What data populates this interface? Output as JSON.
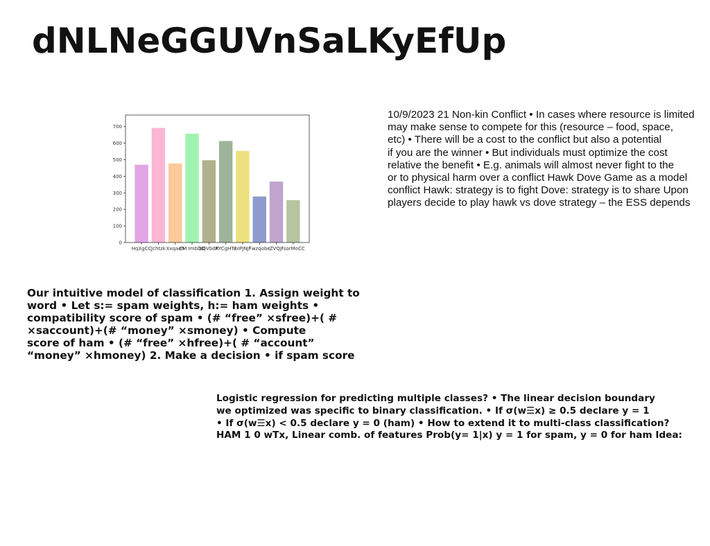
{
  "title": "dNLNeGGUVnSaLKyEfUp",
  "chart_data": {
    "type": "bar",
    "categories": [
      "HqXgCC",
      "Jchtzk",
      "Xxqaeh",
      "CM ImbDD",
      "bQVbdX",
      "RYCgHTe",
      "bIPJNJf",
      "Fwzqobe",
      "ZVQJf",
      "rsorMoCC"
    ],
    "values": [
      470,
      692,
      477,
      657,
      497,
      613,
      553,
      278,
      368,
      256
    ],
    "colors": [
      "#e2a6e6",
      "#fab6d3",
      "#fdca99",
      "#a0f3b1",
      "#b1b18b",
      "#9cb59a",
      "#ede180",
      "#8e9bcc",
      "#c0a4cd",
      "#b7c4a1"
    ],
    "yticks": [
      0,
      100,
      200,
      300,
      400,
      500,
      600,
      700
    ],
    "ylim": [
      0,
      770
    ],
    "title": "",
    "xlabel": "",
    "ylabel": ""
  },
  "para1": [
    "10/9/2023 21 Non-kin Conflict • In cases where resource is limited",
    "may make sense to compete for this (resource – food, space,",
    "etc) • There will be a cost to the conflict but also a potential",
    "if you are the winner • But individuals must optimize the cost",
    "relative the benefit • E.g. animals will almost never fight to the",
    "or to physical harm over a conflict Hawk Dove Game as a model",
    "conflict Hawk: strategy is to fight Dove: strategy is to share Upon",
    "players decide to play hawk vs dove strategy – the ESS depends"
  ],
  "para2": [
    "Our intuitive model of classification 1. Assign weight to",
    "word • Let s:= spam weights, h:= ham weights •",
    "compatibility score of spam • (# “free” ×sfree)+( #",
    "×saccount)+(# “money” ×smoney) • Compute",
    "score of ham • (# “free” ×hfree)+( # “account”",
    "“money” ×hmoney) 2. Make a decision • if spam score"
  ],
  "para3": [
    "Logistic regression for predicting multiple classes? • The linear decision boundary",
    "we optimized was specific to binary classification. • If σ(w☰x) ≥ 0.5 declare y = 1",
    "• If σ(w☰x) < 0.5 declare y = 0 (ham) • How to extend it to multi-class classification?",
    "HAM 1 0 wTx, Linear comb. of features Prob(y= 1|x) y = 1 for spam, y = 0 for ham Idea:"
  ]
}
